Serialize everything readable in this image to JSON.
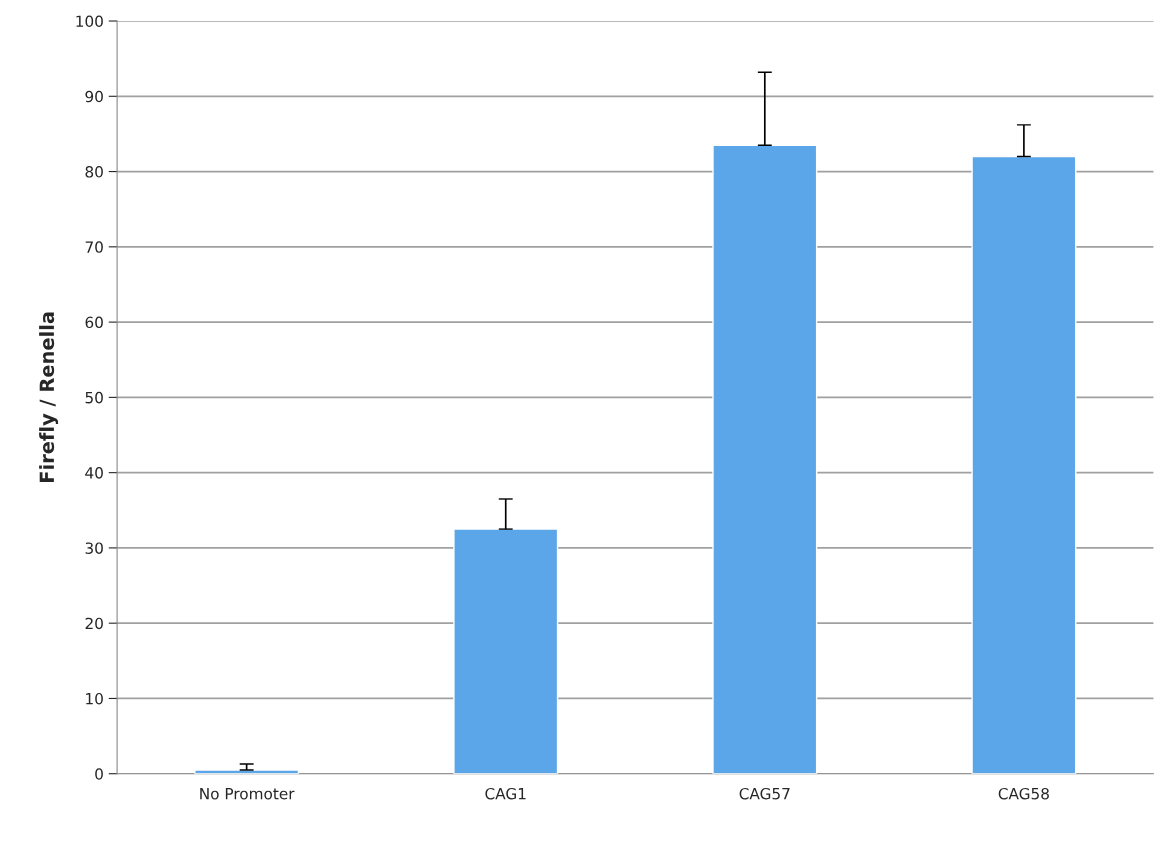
{
  "chart_data": {
    "type": "bar",
    "ylabel": "Firefly / Renella",
    "categories": [
      "No Promoter",
      "CAG1",
      "CAG57",
      "CAG58"
    ],
    "values": [
      0.5,
      32.5,
      83.5,
      82
    ],
    "errors": [
      [
        0.5,
        1.3
      ],
      [
        32.5,
        36.5
      ],
      [
        83.5,
        93.2
      ],
      [
        82,
        86.2
      ]
    ],
    "color": "#5aa6e8",
    "ylim": [
      0,
      100
    ],
    "yticks": [
      0,
      10,
      20,
      30,
      40,
      50,
      60,
      70,
      80,
      90,
      100
    ],
    "grid": "y"
  }
}
